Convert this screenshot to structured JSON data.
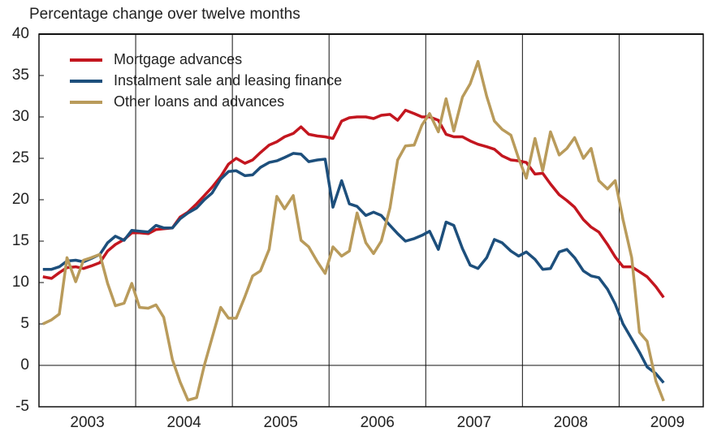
{
  "chart_data": {
    "type": "line",
    "title": "Percentage change over twelve months",
    "x": [
      2003.04,
      2003.13,
      2003.21,
      2003.29,
      2003.38,
      2003.46,
      2003.54,
      2003.63,
      2003.71,
      2003.79,
      2003.88,
      2003.96,
      2004.04,
      2004.13,
      2004.21,
      2004.29,
      2004.38,
      2004.46,
      2004.54,
      2004.63,
      2004.71,
      2004.79,
      2004.88,
      2004.96,
      2005.04,
      2005.13,
      2005.21,
      2005.29,
      2005.38,
      2005.46,
      2005.54,
      2005.63,
      2005.71,
      2005.79,
      2005.88,
      2005.96,
      2006.04,
      2006.13,
      2006.21,
      2006.29,
      2006.38,
      2006.46,
      2006.54,
      2006.63,
      2006.71,
      2006.79,
      2006.88,
      2006.96,
      2007.04,
      2007.13,
      2007.21,
      2007.29,
      2007.38,
      2007.46,
      2007.54,
      2007.63,
      2007.71,
      2007.79,
      2007.88,
      2007.96,
      2008.04,
      2008.13,
      2008.21,
      2008.29,
      2008.38,
      2008.46,
      2008.54,
      2008.63,
      2008.71,
      2008.79,
      2008.88,
      2008.96,
      2009.04,
      2009.13,
      2009.21,
      2009.29,
      2009.38,
      2009.46
    ],
    "series": [
      {
        "name": "Mortgage advances",
        "color": "#c3161f",
        "values": [
          10.7,
          10.5,
          11.2,
          11.8,
          11.9,
          11.7,
          12.0,
          12.4,
          13.8,
          14.6,
          15.2,
          16.0,
          16.0,
          15.9,
          16.4,
          16.5,
          16.6,
          17.9,
          18.5,
          19.5,
          20.5,
          21.5,
          22.8,
          24.3,
          25.0,
          24.4,
          24.8,
          25.7,
          26.6,
          27.0,
          27.6,
          28.0,
          28.8,
          27.9,
          27.7,
          27.6,
          27.4,
          29.5,
          29.9,
          30.0,
          30.0,
          29.8,
          30.2,
          30.3,
          29.6,
          30.8,
          30.4,
          30.0,
          30.0,
          29.6,
          27.9,
          27.6,
          27.6,
          27.1,
          26.7,
          26.4,
          26.1,
          25.3,
          24.8,
          24.7,
          24.5,
          23.1,
          23.2,
          21.9,
          20.6,
          19.9,
          19.1,
          17.6,
          16.7,
          16.1,
          14.6,
          13.1,
          11.9,
          11.9,
          11.3,
          10.7,
          9.5,
          8.2
        ]
      },
      {
        "name": "Instalment sale and leasing finance",
        "color": "#1d4f7c",
        "values": [
          11.6,
          11.6,
          11.9,
          12.6,
          12.7,
          12.5,
          12.9,
          13.4,
          14.8,
          15.6,
          15.1,
          16.3,
          16.2,
          16.1,
          16.9,
          16.6,
          16.6,
          17.7,
          18.4,
          19.0,
          20.0,
          20.8,
          22.5,
          23.4,
          23.5,
          22.9,
          23.0,
          23.9,
          24.5,
          24.7,
          25.1,
          25.6,
          25.5,
          24.6,
          24.8,
          24.9,
          19.1,
          22.3,
          19.5,
          19.2,
          18.1,
          18.5,
          18.1,
          16.9,
          15.9,
          15.0,
          15.3,
          15.7,
          16.2,
          14.0,
          17.3,
          16.9,
          14.1,
          12.1,
          11.7,
          13.0,
          15.2,
          14.8,
          13.8,
          13.2,
          13.7,
          12.8,
          11.6,
          11.7,
          13.7,
          14.0,
          13.0,
          11.4,
          10.8,
          10.6,
          9.2,
          7.4,
          5.0,
          3.2,
          1.6,
          -0.2,
          -1.0,
          -2.1
        ]
      },
      {
        "name": "Other loans and advances",
        "color": "#b99b5b",
        "values": [
          5.0,
          5.5,
          6.2,
          13.0,
          10.1,
          12.7,
          13.0,
          13.4,
          9.9,
          7.2,
          7.5,
          9.9,
          7.0,
          6.9,
          7.3,
          5.8,
          0.7,
          -2.0,
          -4.2,
          -3.9,
          0.0,
          3.3,
          7.0,
          5.7,
          5.7,
          8.3,
          10.8,
          11.4,
          14.0,
          20.4,
          18.9,
          20.5,
          15.1,
          14.3,
          12.5,
          11.1,
          14.3,
          13.2,
          13.8,
          18.4,
          14.8,
          13.5,
          15.0,
          19.0,
          24.8,
          26.5,
          26.6,
          29.0,
          30.4,
          28.2,
          32.2,
          28.3,
          32.4,
          34.0,
          36.7,
          32.5,
          29.5,
          28.5,
          27.8,
          25.0,
          22.6,
          27.4,
          23.5,
          28.2,
          25.4,
          26.2,
          27.5,
          25.0,
          26.2,
          22.3,
          21.3,
          22.3,
          17.6,
          13.0,
          4.0,
          2.9,
          -1.9,
          -4.3
        ]
      }
    ],
    "xlim": [
      2003,
      2009.87
    ],
    "xticks": [
      {
        "value": 2003.5,
        "label": "2003"
      },
      {
        "value": 2004.5,
        "label": "2004"
      },
      {
        "value": 2005.5,
        "label": "2005"
      },
      {
        "value": 2006.5,
        "label": "2006"
      },
      {
        "value": 2007.5,
        "label": "2007"
      },
      {
        "value": 2008.5,
        "label": "2008"
      },
      {
        "value": 2009.5,
        "label": "2009"
      }
    ],
    "vlines": [
      2004,
      2005,
      2006,
      2007,
      2008,
      2009
    ],
    "ylim": [
      -5,
      40
    ],
    "yticks": [
      -5,
      0,
      5,
      10,
      15,
      20,
      25,
      30,
      35,
      40
    ],
    "legend": "upper left"
  }
}
